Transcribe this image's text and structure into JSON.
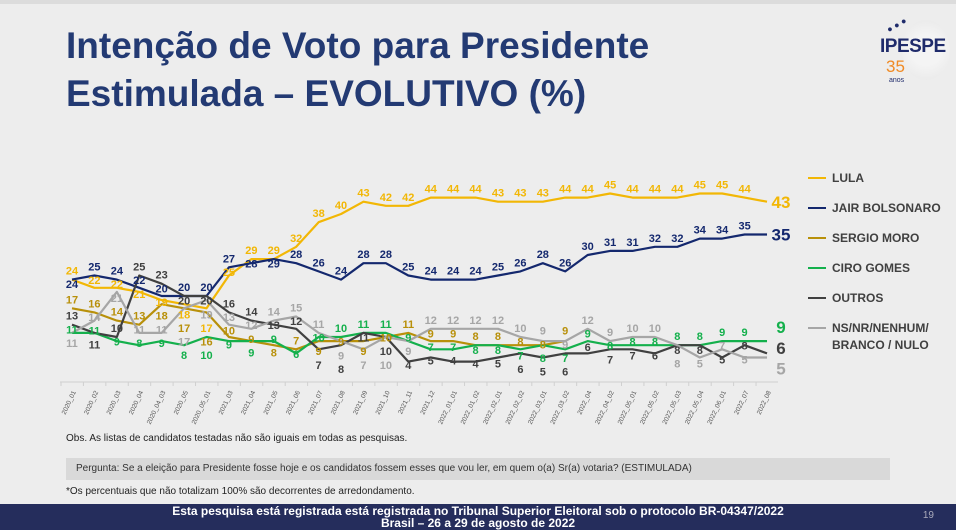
{
  "title_line1": "Intenção de Voto para Presidente",
  "title_line2": "Estimulada – EVOLUTIVO (%)",
  "logo": {
    "name": "IPESPE",
    "number": "35",
    "sub": "anos"
  },
  "obs": "Obs. As listas de candidatos testadas não são iguais em todas as pesquisas.",
  "question": "Pergunta:  Se a eleição para Presidente fosse hoje e os candidatos fossem esses que vou ler, em quem o(a) Sr(a) votaria? (ESTIMULADA)",
  "note": "*Os percentuais que não totalizam 100% são decorrentes de arredondamento.",
  "footer_line1": "Esta pesquisa está registrada está registrada no Tribunal Superior Eleitoral sob o protocolo BR-04347/2022",
  "footer_line2": "Brasil – 26 a 29 de agosto de 2022",
  "page_number": "19",
  "chart_data": {
    "type": "line",
    "title": "",
    "xlabel": "",
    "ylabel": "",
    "grid": false,
    "legend": "right",
    "categories": [
      "2020_01",
      "2020_02",
      "2020_03",
      "2020_04",
      "2020_04_03",
      "2020_05",
      "2020_05_01",
      "2021_03",
      "2021_04",
      "2021_05",
      "2021_06",
      "2021_07",
      "2021_08",
      "2021_09",
      "2021_10",
      "2021_11",
      "2021_12",
      "2022_01_01",
      "2022_01_02",
      "2022_02_01",
      "2022_02_02",
      "2022_03_01",
      "2022_03_02",
      "2022_04",
      "2022_04_02",
      "2022_05_01",
      "2022_05_02",
      "2022_05_03",
      "2022_05_04",
      "2022_06_01",
      "2022_07",
      "2022_08"
    ],
    "series": [
      {
        "name": "LULA",
        "color": "#f2b705",
        "values": [
          24,
          22,
          22,
          21,
          19,
          18,
          17,
          25,
          29,
          29,
          32,
          38,
          40,
          43,
          42,
          42,
          44,
          44,
          44,
          43,
          43,
          43,
          44,
          44,
          45,
          44,
          44,
          44,
          45,
          45,
          44,
          43
        ]
      },
      {
        "name": "JAIR BOLSONARO",
        "color": "#14286e",
        "values": [
          24,
          25,
          24,
          22,
          20,
          20,
          20,
          27,
          28,
          29,
          28,
          26,
          24,
          28,
          28,
          25,
          24,
          24,
          24,
          25,
          26,
          28,
          26,
          30,
          31,
          31,
          32,
          32,
          34,
          34,
          35,
          35
        ]
      },
      {
        "name": "SERGIO MORO",
        "color": "#b8900a",
        "values": [
          17,
          16,
          14,
          13,
          18,
          17,
          16,
          10,
          9,
          8,
          7,
          9,
          9,
          9,
          10,
          11,
          9,
          9,
          8,
          8,
          8,
          8,
          9,
          null,
          null,
          null,
          null,
          null,
          null,
          null,
          null,
          null
        ]
      },
      {
        "name": "CIRO GOMES",
        "color": "#14b04c",
        "values": [
          11,
          11,
          9,
          8,
          9,
          8,
          10,
          9,
          9,
          9,
          6,
          10,
          10,
          11,
          11,
          9,
          7,
          7,
          8,
          8,
          7,
          8,
          7,
          9,
          8,
          8,
          8,
          8,
          8,
          9,
          9,
          9
        ]
      },
      {
        "name": "OUTROS",
        "color": "#404040",
        "values": [
          13,
          11,
          10,
          25,
          23,
          20,
          20,
          16,
          14,
          13,
          12,
          7,
          8,
          11,
          10,
          4,
          5,
          4,
          4,
          5,
          6,
          5,
          6,
          6,
          7,
          7,
          6,
          8,
          8,
          5,
          8,
          6
        ]
      },
      {
        "name": "NS/NR/NENHUM/ BRANCO / NULO",
        "color": "#a6a6a6",
        "values": [
          11,
          14,
          21,
          11,
          11,
          17,
          19,
          13,
          12,
          14,
          15,
          11,
          9,
          7,
          10,
          9,
          12,
          12,
          12,
          12,
          10,
          9,
          9,
          12,
          9,
          10,
          10,
          8,
          5,
          7,
          5,
          5
        ]
      }
    ]
  }
}
